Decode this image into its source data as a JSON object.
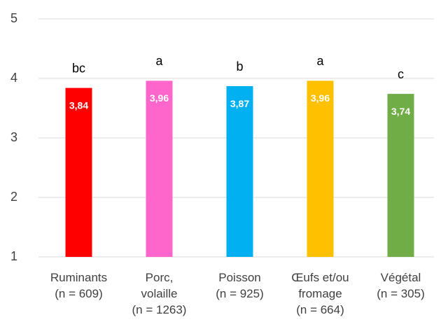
{
  "chart_data": {
    "type": "bar",
    "categories": [
      [
        "Ruminants",
        "(n = 609)"
      ],
      [
        "Porc,",
        "volaille",
        "(n = 1263)"
      ],
      [
        "Poisson",
        "(n = 925)"
      ],
      [
        "Œufs et/ou",
        "fromage",
        "(n = 664)"
      ],
      [
        "Végétal",
        "(n = 305)"
      ]
    ],
    "values": [
      3.84,
      3.96,
      3.87,
      3.96,
      3.74
    ],
    "value_labels": [
      "3,84",
      "3,96",
      "3,87",
      "3,96",
      "3,74"
    ],
    "annotations": [
      "bc",
      "a",
      "b",
      "a",
      "c"
    ],
    "colors": [
      "#ff0000",
      "#ff66cc",
      "#00b0f0",
      "#ffc000",
      "#70ad47"
    ],
    "ylim": [
      1,
      5
    ],
    "yticks": [
      1,
      2,
      3,
      4,
      5
    ],
    "grid": true
  }
}
